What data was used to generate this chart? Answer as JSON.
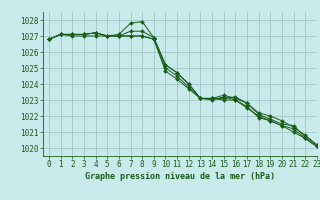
{
  "title": "Graphe pression niveau de la mer (hPa)",
  "background_color": "#c8eaea",
  "grid_color": "#a0c8c8",
  "line_color": "#1a5c1a",
  "marker_color": "#1a5c1a",
  "xlim": [
    -0.5,
    23
  ],
  "ylim": [
    1019.5,
    1028.5
  ],
  "yticks": [
    1020,
    1021,
    1022,
    1023,
    1024,
    1025,
    1026,
    1027,
    1028
  ],
  "xticks": [
    0,
    1,
    2,
    3,
    4,
    5,
    6,
    7,
    8,
    9,
    10,
    11,
    12,
    13,
    14,
    15,
    16,
    17,
    18,
    19,
    20,
    21,
    22,
    23
  ],
  "series": [
    [
      1026.8,
      1027.1,
      1027.1,
      1027.1,
      1027.2,
      1027.0,
      1027.1,
      1027.8,
      1027.9,
      1026.9,
      1025.2,
      1024.7,
      1024.0,
      1023.1,
      1023.1,
      1023.3,
      1023.1,
      1022.8,
      1022.1,
      1021.8,
      1021.5,
      1021.4,
      1020.7,
      1020.2
    ],
    [
      1026.8,
      1027.1,
      1027.1,
      1027.1,
      1027.2,
      1027.0,
      1027.0,
      1027.3,
      1027.3,
      1026.9,
      1025.2,
      1024.7,
      1024.0,
      1023.1,
      1023.1,
      1023.0,
      1023.0,
      1022.6,
      1021.9,
      1021.7,
      1021.4,
      1021.2,
      1020.6,
      1020.1
    ],
    [
      1026.8,
      1027.1,
      1027.1,
      1027.1,
      1027.2,
      1027.0,
      1027.0,
      1027.0,
      1027.0,
      1026.8,
      1025.0,
      1024.5,
      1023.8,
      1023.1,
      1023.1,
      1023.1,
      1023.2,
      1022.8,
      1022.2,
      1022.0,
      1021.7,
      1021.3,
      1020.8,
      1020.2
    ],
    [
      1026.8,
      1027.1,
      1027.0,
      1027.0,
      1027.0,
      1027.0,
      1027.0,
      1027.0,
      1027.0,
      1026.8,
      1024.8,
      1024.3,
      1023.7,
      1023.1,
      1023.0,
      1023.2,
      1023.0,
      1022.5,
      1022.0,
      1021.7,
      1021.4,
      1021.0,
      1020.6,
      1020.1
    ]
  ],
  "title_fontsize": 6.0,
  "tick_fontsize": 5.5,
  "label_color": "#1a5c1a"
}
